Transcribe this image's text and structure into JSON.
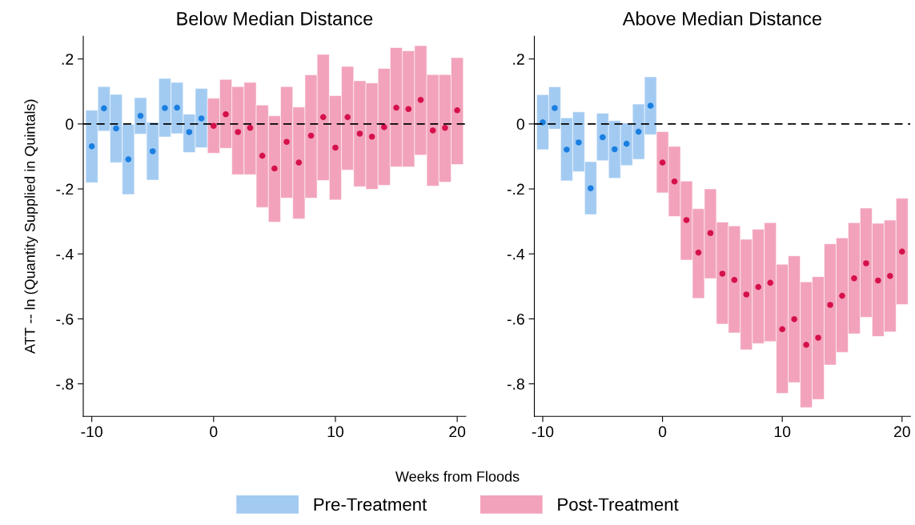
{
  "chart_data": [
    {
      "type": "bar",
      "title": "Below Median Distance",
      "xlabel": "Weeks from Floods",
      "ylabel": "ATT -- ln (Quantity Supplied in Quintals)",
      "legend": "bottom",
      "xlim": [
        -10.7,
        20.7
      ],
      "xticks": [
        -10,
        0,
        10,
        20
      ],
      "ylim": [
        -0.9,
        0.27
      ],
      "yticks": [
        {
          "value": 0.2,
          "label": ".2"
        },
        0,
        {
          "value": -0.2,
          "label": "-.2"
        },
        {
          "value": -0.4,
          "label": "-.4"
        },
        {
          "value": -0.6,
          "label": "-.6"
        },
        {
          "value": -0.8,
          "label": "-.8"
        }
      ],
      "ref_lines": [
        {
          "axis": "y",
          "value": 0,
          "color": "#000000",
          "line_style": "dashed"
        }
      ],
      "series": [
        {
          "name": "Pre-Treatment",
          "type": "bar",
          "color": "#a3cbf2",
          "x": [
            -10,
            -9,
            -8,
            -7,
            -6,
            -5,
            -4,
            -3,
            -2,
            -1
          ],
          "base": [
            -0.181,
            -0.022,
            -0.119,
            -0.217,
            -0.031,
            -0.173,
            -0.04,
            -0.03,
            -0.088,
            -0.073
          ],
          "values": [
            0.223,
            0.137,
            0.21,
            0.216,
            0.112,
            0.178,
            0.18,
            0.158,
            0.118,
            0.182
          ]
        },
        {
          "name": "Post-Treatment",
          "type": "bar",
          "color": "#f2a3bb",
          "x": [
            0,
            1,
            2,
            3,
            4,
            5,
            6,
            7,
            8,
            9,
            10,
            11,
            12,
            13,
            14,
            15,
            16,
            17,
            18,
            19,
            20
          ],
          "base": [
            -0.09,
            -0.075,
            -0.156,
            -0.156,
            -0.257,
            -0.302,
            -0.228,
            -0.292,
            -0.228,
            -0.174,
            -0.234,
            -0.142,
            -0.193,
            -0.201,
            -0.189,
            -0.132,
            -0.132,
            -0.096,
            -0.191,
            -0.179,
            -0.125
          ],
          "values": [
            0.169,
            0.212,
            0.271,
            0.284,
            0.315,
            0.327,
            0.343,
            0.344,
            0.379,
            0.388,
            0.321,
            0.319,
            0.326,
            0.327,
            0.36,
            0.367,
            0.357,
            0.337,
            0.343,
            0.331,
            0.329
          ]
        },
        {
          "type": "scatter",
          "color": "#1a7fe0",
          "marker": "circle",
          "x": [
            -10,
            -9,
            -8,
            -7,
            -6,
            -5,
            -4,
            -3,
            -2,
            -1
          ],
          "values": [
            -0.069,
            0.048,
            -0.014,
            -0.109,
            0.025,
            -0.084,
            0.049,
            0.05,
            -0.025,
            0.017
          ]
        },
        {
          "type": "scatter",
          "color": "#d5114c",
          "marker": "circle",
          "x": [
            0,
            1,
            2,
            3,
            4,
            5,
            6,
            7,
            8,
            9,
            10,
            11,
            12,
            13,
            14,
            15,
            16,
            17,
            18,
            19,
            20
          ],
          "values": [
            -0.006,
            0.03,
            -0.025,
            -0.012,
            -0.098,
            -0.137,
            -0.055,
            -0.119,
            -0.036,
            0.021,
            -0.073,
            0.021,
            -0.03,
            -0.039,
            -0.01,
            0.05,
            0.046,
            0.074,
            -0.02,
            -0.012,
            0.042
          ]
        }
      ]
    },
    {
      "type": "bar",
      "title": "Above Median Distance",
      "xlim": [
        -10.7,
        20.7
      ],
      "xticks": [
        -10,
        0,
        10,
        20
      ],
      "ylim": [
        -0.9,
        0.27
      ],
      "yticks": [
        {
          "value": 0.2,
          "label": ".2"
        },
        0,
        {
          "value": -0.2,
          "label": "-.2"
        },
        {
          "value": -0.4,
          "label": "-.4"
        },
        {
          "value": -0.6,
          "label": "-.6"
        },
        {
          "value": -0.8,
          "label": "-.8"
        }
      ],
      "ref_lines": [
        {
          "axis": "y",
          "value": 0,
          "color": "#000000",
          "line_style": "dashed"
        }
      ],
      "series": [
        {
          "name": "Pre-Treatment",
          "type": "bar",
          "color": "#a3cbf2",
          "x": [
            -10,
            -9,
            -8,
            -7,
            -6,
            -5,
            -4,
            -3,
            -2,
            -1
          ],
          "base": [
            -0.079,
            -0.016,
            -0.175,
            -0.147,
            -0.279,
            -0.113,
            -0.167,
            -0.128,
            -0.109,
            -0.033
          ],
          "values": [
            0.169,
            0.13,
            0.194,
            0.184,
            0.163,
            0.146,
            0.177,
            0.131,
            0.17,
            0.178
          ]
        },
        {
          "name": "Post-Treatment",
          "type": "bar",
          "color": "#f2a3bb",
          "x": [
            0,
            1,
            2,
            3,
            4,
            5,
            6,
            7,
            8,
            9,
            10,
            11,
            12,
            13,
            14,
            15,
            16,
            17,
            18,
            19,
            20
          ],
          "base": [
            -0.212,
            -0.285,
            -0.419,
            -0.537,
            -0.476,
            -0.616,
            -0.643,
            -0.695,
            -0.676,
            -0.67,
            -0.829,
            -0.796,
            -0.873,
            -0.848,
            -0.742,
            -0.703,
            -0.646,
            -0.595,
            -0.654,
            -0.64,
            -0.556
          ],
          "values": [
            0.188,
            0.216,
            0.243,
            0.276,
            0.276,
            0.314,
            0.329,
            0.34,
            0.352,
            0.366,
            0.397,
            0.39,
            0.387,
            0.378,
            0.373,
            0.352,
            0.342,
            0.336,
            0.348,
            0.344,
            0.327
          ]
        },
        {
          "type": "scatter",
          "color": "#1a7fe0",
          "marker": "circle",
          "x": [
            -10,
            -9,
            -8,
            -7,
            -6,
            -5,
            -4,
            -3,
            -2,
            -1
          ],
          "values": [
            0.005,
            0.049,
            -0.079,
            -0.057,
            -0.198,
            -0.041,
            -0.078,
            -0.061,
            -0.024,
            0.056
          ]
        },
        {
          "type": "scatter",
          "color": "#d5114c",
          "marker": "circle",
          "x": [
            0,
            1,
            2,
            3,
            4,
            5,
            6,
            7,
            8,
            9,
            10,
            11,
            12,
            13,
            14,
            15,
            16,
            17,
            18,
            19,
            20
          ],
          "values": [
            -0.119,
            -0.177,
            -0.296,
            -0.396,
            -0.336,
            -0.461,
            -0.48,
            -0.525,
            -0.502,
            -0.489,
            -0.632,
            -0.601,
            -0.68,
            -0.658,
            -0.557,
            -0.529,
            -0.475,
            -0.429,
            -0.482,
            -0.468,
            -0.393
          ]
        }
      ]
    }
  ]
}
